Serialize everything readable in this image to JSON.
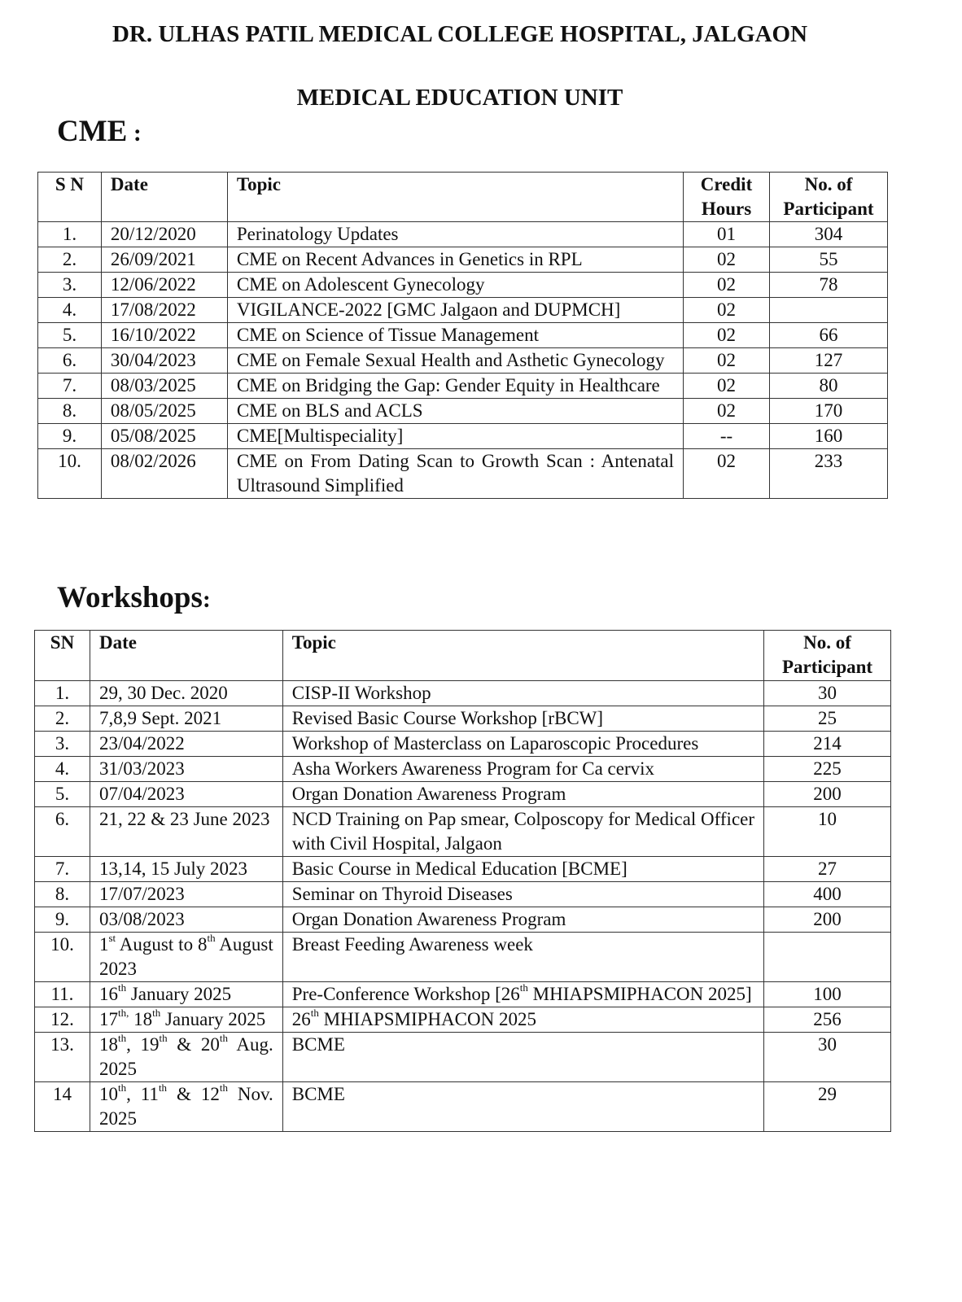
{
  "header": {
    "title": "DR. ULHAS PATIL  MEDICAL COLLEGE  HOSPITAL, JALGAON",
    "subtitle": "MEDICAL EDUCATION UNIT"
  },
  "cme": {
    "heading": "CME",
    "colon": " :",
    "columns": [
      "S N",
      "Date",
      "Topic",
      "Credit Hours",
      "No. of Participant"
    ],
    "rows": [
      [
        "1.",
        "20/12/2020",
        "Perinatology Updates",
        "01",
        "304"
      ],
      [
        "2.",
        "26/09/2021",
        "CME on Recent Advances in Genetics in RPL",
        "02",
        "55"
      ],
      [
        "3.",
        "12/06/2022",
        "CME on Adolescent Gynecology",
        "02",
        "78"
      ],
      [
        "4.",
        "17/08/2022",
        "VIGILANCE-2022 [GMC Jalgaon and DUPMCH]",
        "02",
        ""
      ],
      [
        "5.",
        "16/10/2022",
        "CME on Science of Tissue Management",
        "02",
        "66"
      ],
      [
        "6.",
        "30/04/2023",
        "CME on Female Sexual Health and Asthetic Gynecology",
        "02",
        "127"
      ],
      [
        "7.",
        "08/03/2025",
        "CME on Bridging the Gap: Gender Equity in Healthcare",
        "02",
        "80"
      ],
      [
        "8.",
        "08/05/2025",
        "CME on BLS and ACLS",
        "02",
        "170"
      ],
      [
        "9.",
        "05/08/2025",
        "CME[Multispeciality]",
        "--",
        "160"
      ],
      [
        "10.",
        "08/02/2026",
        "CME on From Dating Scan to Growth Scan : Antenatal Ultrasound Simplified",
        "02",
        "233"
      ]
    ]
  },
  "workshops": {
    "heading": "Workshops",
    "colon": ":",
    "columns": [
      "SN",
      "Date",
      "Topic",
      "No. of Participant"
    ],
    "rows": [
      [
        "1.",
        "29, 30 Dec. 2020",
        "CISP-II Workshop",
        "30"
      ],
      [
        "2.",
        "7,8,9 Sept. 2021",
        "Revised Basic Course Workshop [rBCW]",
        "25"
      ],
      [
        "3.",
        "23/04/2022",
        "Workshop of Masterclass on Laparoscopic Procedures",
        "214"
      ],
      [
        "4.",
        "31/03/2023",
        "Asha Workers Awareness Program for Ca cervix",
        "225"
      ],
      [
        "5.",
        "07/04/2023",
        "Organ Donation Awareness Program",
        "200"
      ],
      [
        "6.",
        "21, 22 & 23 June 2023",
        "NCD Training on Pap smear, Colposcopy for Medical Officer with Civil Hospital, Jalgaon",
        "10"
      ],
      [
        "7.",
        "13,14, 15 July 2023",
        "Basic Course in Medical Education [BCME]",
        "27"
      ],
      [
        "8.",
        "17/07/2023",
        "Seminar on Thyroid Diseases",
        "400"
      ],
      [
        "9.",
        "03/08/2023",
        "Organ Donation Awareness Program",
        "200"
      ],
      [
        "10.",
        [
          "1",
          {
            "sup": "st"
          },
          " August to 8",
          {
            "sup": "th"
          },
          " August 2023"
        ],
        "Breast Feeding Awareness week",
        ""
      ],
      [
        "11.",
        [
          "16",
          {
            "sup": "th"
          },
          " January 2025"
        ],
        [
          "Pre-Conference Workshop [26",
          {
            "sup": "th"
          },
          " MHIAPSMIPHACON 2025]"
        ],
        "100"
      ],
      [
        "12.",
        [
          "17",
          {
            "sup": "th,"
          },
          " 18",
          {
            "sup": "th"
          },
          " January 2025"
        ],
        [
          "26",
          {
            "sup": "th"
          },
          " MHIAPSMIPHACON 2025"
        ],
        "256"
      ],
      [
        "13.",
        [
          "18",
          {
            "sup": "th"
          },
          ", 19",
          {
            "sup": "th"
          },
          " & 20",
          {
            "sup": "th"
          },
          " Aug. 2025"
        ],
        "BCME",
        "30"
      ],
      [
        "14",
        [
          "10",
          {
            "sup": "th"
          },
          ", 11",
          {
            "sup": "th"
          },
          " & 12",
          {
            "sup": "th"
          },
          " Nov. 2025"
        ],
        "BCME",
        "29"
      ]
    ]
  }
}
